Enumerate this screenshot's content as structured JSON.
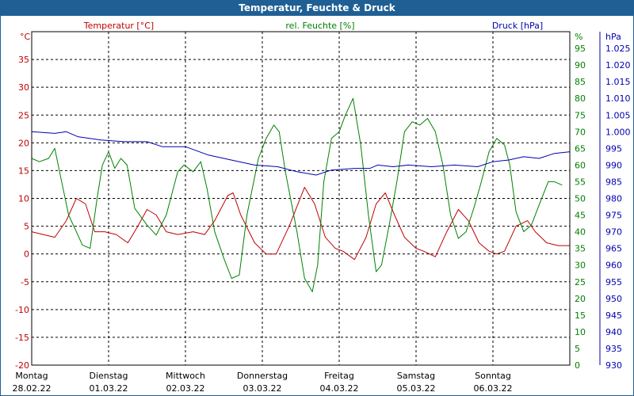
{
  "window": {
    "title": "Temperatur, Feuchte & Druck"
  },
  "colors": {
    "temperature": "#c00000",
    "humidity": "#008000",
    "pressure": "#0000b0",
    "title_bg": "#1f5f94"
  },
  "chart_data": {
    "type": "line",
    "title": "Temperatur, Feuchte & Druck",
    "grid": true,
    "x": {
      "ticks": [
        {
          "day": "Montag",
          "date": "28.02.22"
        },
        {
          "day": "Dienstag",
          "date": "01.03.22"
        },
        {
          "day": "Mittwoch",
          "date": "02.03.22"
        },
        {
          "day": "Donnerstag",
          "date": "03.03.22"
        },
        {
          "day": "Freitag",
          "date": "04.03.22"
        },
        {
          "day": "Samstag",
          "date": "05.03.22"
        },
        {
          "day": "Sonntag",
          "date": "06.03.22"
        }
      ],
      "range_days": [
        0,
        7
      ]
    },
    "axes": {
      "temperature": {
        "label": "Temperatur [°C]",
        "unit": "°C",
        "min": -20,
        "max": 40,
        "ticks": [
          "-20",
          "-15",
          "-10",
          "-5",
          "0",
          "5",
          "10",
          "15",
          "20",
          "25",
          "30",
          "35"
        ]
      },
      "humidity": {
        "label": "rel. Feuchte [%]",
        "unit": "%",
        "min": 0,
        "max": 100,
        "ticks": [
          "0",
          "5",
          "10",
          "15",
          "20",
          "25",
          "30",
          "35",
          "40",
          "45",
          "50",
          "55",
          "60",
          "65",
          "70",
          "75",
          "80",
          "85",
          "90",
          "95"
        ]
      },
      "pressure": {
        "label": "Druck [hPa]",
        "unit": "hPa",
        "min": 930,
        "max": 1030,
        "ticks": [
          "930",
          "935",
          "940",
          "945",
          "950",
          "955",
          "960",
          "965",
          "970",
          "975",
          "980",
          "985",
          "990",
          "995",
          "1.000",
          "1.005",
          "1.010",
          "1.015",
          "1.020",
          "1.025"
        ]
      }
    },
    "series": [
      {
        "name": "Temperatur [°C]",
        "axis": "temperature",
        "points": [
          [
            0,
            4
          ],
          [
            0.15,
            3.5
          ],
          [
            0.3,
            3
          ],
          [
            0.45,
            6
          ],
          [
            0.58,
            10
          ],
          [
            0.7,
            9
          ],
          [
            0.82,
            4
          ],
          [
            0.95,
            4
          ],
          [
            1.1,
            3.5
          ],
          [
            1.25,
            2
          ],
          [
            1.38,
            5
          ],
          [
            1.5,
            8
          ],
          [
            1.62,
            7
          ],
          [
            1.75,
            4
          ],
          [
            1.9,
            3.5
          ],
          [
            2.1,
            4
          ],
          [
            2.25,
            3.5
          ],
          [
            2.38,
            6
          ],
          [
            2.55,
            10.5
          ],
          [
            2.62,
            11
          ],
          [
            2.72,
            7
          ],
          [
            2.9,
            2
          ],
          [
            3.05,
            0
          ],
          [
            3.18,
            0
          ],
          [
            3.35,
            5
          ],
          [
            3.55,
            12
          ],
          [
            3.68,
            9
          ],
          [
            3.82,
            3
          ],
          [
            3.95,
            1
          ],
          [
            4.05,
            0.5
          ],
          [
            4.2,
            -1
          ],
          [
            4.35,
            3
          ],
          [
            4.48,
            9
          ],
          [
            4.6,
            11
          ],
          [
            4.72,
            7
          ],
          [
            4.85,
            3
          ],
          [
            5.0,
            1
          ],
          [
            5.1,
            0.5
          ],
          [
            5.25,
            -0.5
          ],
          [
            5.4,
            4
          ],
          [
            5.55,
            8
          ],
          [
            5.68,
            6
          ],
          [
            5.82,
            2
          ],
          [
            5.95,
            0.5
          ],
          [
            6.05,
            0
          ],
          [
            6.15,
            0.5
          ],
          [
            6.3,
            5
          ],
          [
            6.45,
            6
          ],
          [
            6.55,
            4
          ],
          [
            6.7,
            2
          ],
          [
            6.85,
            1.5
          ],
          [
            7,
            1.5
          ]
        ]
      },
      {
        "name": "rel. Feuchte [%]",
        "axis": "humidity",
        "points": [
          [
            0,
            62
          ],
          [
            0.1,
            61
          ],
          [
            0.22,
            62
          ],
          [
            0.3,
            65
          ],
          [
            0.38,
            56
          ],
          [
            0.48,
            45
          ],
          [
            0.58,
            40
          ],
          [
            0.66,
            36
          ],
          [
            0.76,
            35
          ],
          [
            0.85,
            50
          ],
          [
            0.92,
            60
          ],
          [
            1.0,
            64
          ],
          [
            1.08,
            59
          ],
          [
            1.16,
            62
          ],
          [
            1.24,
            60
          ],
          [
            1.34,
            47
          ],
          [
            1.5,
            42
          ],
          [
            1.62,
            39
          ],
          [
            1.75,
            45
          ],
          [
            1.9,
            58
          ],
          [
            1.98,
            60
          ],
          [
            2.1,
            58
          ],
          [
            2.2,
            61
          ],
          [
            2.28,
            53
          ],
          [
            2.38,
            40
          ],
          [
            2.5,
            32
          ],
          [
            2.6,
            26
          ],
          [
            2.7,
            27
          ],
          [
            2.8,
            45
          ],
          [
            2.95,
            62
          ],
          [
            3.05,
            68
          ],
          [
            3.15,
            72
          ],
          [
            3.22,
            70
          ],
          [
            3.3,
            58
          ],
          [
            3.45,
            40
          ],
          [
            3.55,
            26
          ],
          [
            3.65,
            22
          ],
          [
            3.72,
            30
          ],
          [
            3.8,
            55
          ],
          [
            3.9,
            68
          ],
          [
            4.0,
            70
          ],
          [
            4.08,
            75
          ],
          [
            4.18,
            80
          ],
          [
            4.28,
            66
          ],
          [
            4.38,
            45
          ],
          [
            4.48,
            28
          ],
          [
            4.55,
            30
          ],
          [
            4.65,
            42
          ],
          [
            4.75,
            55
          ],
          [
            4.85,
            70
          ],
          [
            4.95,
            73
          ],
          [
            5.05,
            72
          ],
          [
            5.15,
            74
          ],
          [
            5.25,
            70
          ],
          [
            5.35,
            60
          ],
          [
            5.45,
            45
          ],
          [
            5.55,
            38
          ],
          [
            5.65,
            40
          ],
          [
            5.75,
            47
          ],
          [
            5.85,
            55
          ],
          [
            5.95,
            64
          ],
          [
            6.05,
            68
          ],
          [
            6.15,
            66
          ],
          [
            6.22,
            60
          ],
          [
            6.3,
            46
          ],
          [
            6.4,
            40
          ],
          [
            6.5,
            42
          ],
          [
            6.6,
            48
          ],
          [
            6.72,
            55
          ],
          [
            6.8,
            55
          ],
          [
            6.9,
            54
          ]
        ]
      },
      {
        "name": "Druck [hPa]",
        "axis": "pressure",
        "points": [
          [
            0,
            1000
          ],
          [
            0.3,
            999.5
          ],
          [
            0.45,
            1000
          ],
          [
            0.6,
            998.5
          ],
          [
            0.9,
            997.5
          ],
          [
            1.2,
            997
          ],
          [
            1.5,
            997
          ],
          [
            1.7,
            995.5
          ],
          [
            2.0,
            995.5
          ],
          [
            2.3,
            993
          ],
          [
            2.6,
            991.5
          ],
          [
            2.9,
            990
          ],
          [
            3.2,
            989.5
          ],
          [
            3.45,
            988
          ],
          [
            3.7,
            987
          ],
          [
            3.9,
            988.5
          ],
          [
            4.2,
            989
          ],
          [
            4.4,
            989
          ],
          [
            4.5,
            990
          ],
          [
            4.7,
            989.5
          ],
          [
            4.9,
            990
          ],
          [
            5.2,
            989.5
          ],
          [
            5.5,
            990
          ],
          [
            5.8,
            989.5
          ],
          [
            6.0,
            991
          ],
          [
            6.2,
            991.5
          ],
          [
            6.4,
            992.5
          ],
          [
            6.6,
            992
          ],
          [
            6.8,
            993.5
          ],
          [
            7,
            994
          ]
        ]
      }
    ]
  }
}
